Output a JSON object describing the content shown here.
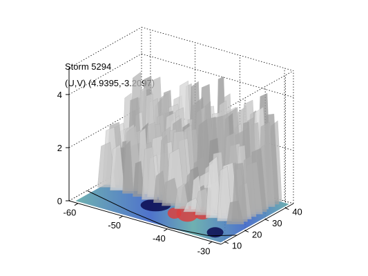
{
  "chart_data": {
    "type": "surface3d",
    "title_lines": [
      "Storm 5294",
      "(U,V) (4.9395,-3.2097)"
    ],
    "x_ticks": [
      -60,
      -50,
      -40,
      -30
    ],
    "y_ticks": [
      10,
      20,
      30,
      40
    ],
    "z_ticks": [
      0,
      2,
      4
    ],
    "xlim": [
      -62,
      -28
    ],
    "ylim": [
      8,
      44
    ],
    "zlim": [
      0,
      5
    ],
    "grid": "dotted",
    "colors": {
      "surface": "#a8a8a8",
      "surface_light": "#d6d6d6",
      "floor_low": "#5fa8a8",
      "floor_mid": "#3b63c6",
      "floor_high": "#d94040",
      "floor_dark": "#0a0a50"
    }
  }
}
